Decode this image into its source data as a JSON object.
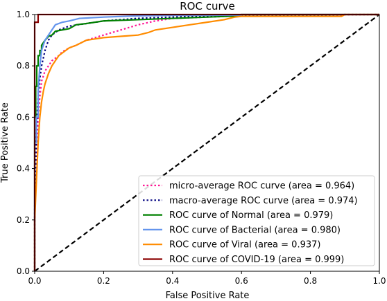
{
  "chart_data": {
    "type": "line",
    "title": "ROC curve",
    "xlabel": "False Positive Rate",
    "ylabel": "True Positive Rate",
    "xlim": [
      0,
      1
    ],
    "ylim": [
      0,
      1
    ],
    "xticks": [
      "0.0",
      "0.2",
      "0.4",
      "0.6",
      "0.8",
      "1.0"
    ],
    "yticks": [
      "0.0",
      "0.2",
      "0.4",
      "0.6",
      "0.8",
      "1.0"
    ],
    "grid": false,
    "legend_position": "lower-right",
    "chance_line": {
      "x": [
        0,
        1
      ],
      "y": [
        0,
        1
      ],
      "color": "#000000",
      "style": "dashed"
    },
    "series": [
      {
        "name": "micro-average ROC curve (area = 0.964)",
        "color": "#ff1493",
        "style": "dotted",
        "x": [
          0.0,
          0.0,
          0.005,
          0.01,
          0.015,
          0.02,
          0.03,
          0.04,
          0.05,
          0.06,
          0.07,
          0.08,
          0.1,
          0.12,
          0.15,
          0.2,
          0.25,
          0.3,
          0.35,
          0.4,
          0.5,
          0.6,
          0.7,
          0.8,
          0.9,
          1.0
        ],
        "y": [
          0.0,
          0.2,
          0.45,
          0.6,
          0.68,
          0.74,
          0.78,
          0.8,
          0.82,
          0.83,
          0.84,
          0.855,
          0.87,
          0.88,
          0.9,
          0.92,
          0.94,
          0.96,
          0.975,
          0.985,
          0.99,
          0.995,
          0.997,
          0.998,
          0.999,
          1.0
        ]
      },
      {
        "name": "macro-average ROC curve (area = 0.974)",
        "color": "#000080",
        "style": "dotted",
        "x": [
          0.0,
          0.0,
          0.005,
          0.01,
          0.015,
          0.02,
          0.03,
          0.04,
          0.05,
          0.07,
          0.1,
          0.15,
          0.2,
          0.3,
          0.4,
          0.5,
          0.6,
          0.8,
          0.9,
          1.0
        ],
        "y": [
          0.0,
          0.25,
          0.55,
          0.68,
          0.75,
          0.8,
          0.86,
          0.9,
          0.92,
          0.94,
          0.955,
          0.965,
          0.975,
          0.985,
          0.99,
          0.995,
          0.997,
          0.998,
          1.0,
          1.0
        ]
      },
      {
        "name": "ROC curve of Normal (area = 0.979)",
        "color": "#008000",
        "style": "solid",
        "x": [
          0.0,
          0.0,
          0.003,
          0.003,
          0.006,
          0.006,
          0.01,
          0.01,
          0.015,
          0.015,
          0.02,
          0.02,
          0.025,
          0.03,
          0.04,
          0.05,
          0.06,
          0.08,
          0.1,
          0.12,
          0.15,
          0.2,
          0.3,
          0.4,
          0.5,
          0.6,
          0.6,
          1.0
        ],
        "y": [
          0.0,
          0.6,
          0.6,
          0.72,
          0.72,
          0.8,
          0.8,
          0.84,
          0.84,
          0.86,
          0.86,
          0.88,
          0.89,
          0.9,
          0.915,
          0.92,
          0.935,
          0.94,
          0.945,
          0.96,
          0.965,
          0.975,
          0.98,
          0.985,
          0.99,
          0.995,
          1.0,
          1.0
        ]
      },
      {
        "name": "ROC curve of Bacterial (area = 0.980)",
        "color": "#6495ed",
        "style": "solid",
        "x": [
          0.0,
          0.0,
          0.005,
          0.005,
          0.01,
          0.01,
          0.015,
          0.02,
          0.025,
          0.03,
          0.04,
          0.05,
          0.06,
          0.08,
          0.1,
          0.13,
          0.2,
          0.3,
          0.4,
          0.6,
          0.6,
          1.0
        ],
        "y": [
          0.0,
          0.5,
          0.5,
          0.6,
          0.6,
          0.7,
          0.8,
          0.86,
          0.88,
          0.9,
          0.92,
          0.94,
          0.96,
          0.97,
          0.975,
          0.985,
          0.99,
          0.995,
          0.997,
          0.998,
          1.0,
          1.0
        ]
      },
      {
        "name": "ROC curve of Viral (area = 0.937)",
        "color": "#ff8c00",
        "style": "solid",
        "x": [
          0.0,
          0.0,
          0.005,
          0.01,
          0.015,
          0.02,
          0.025,
          0.03,
          0.035,
          0.04,
          0.05,
          0.06,
          0.07,
          0.08,
          0.1,
          0.12,
          0.15,
          0.2,
          0.25,
          0.3,
          0.33,
          0.35,
          0.4,
          0.45,
          0.5,
          0.55,
          0.58,
          0.6,
          0.7,
          0.8,
          0.89,
          0.9,
          1.0
        ],
        "y": [
          0.0,
          0.2,
          0.35,
          0.5,
          0.6,
          0.66,
          0.7,
          0.73,
          0.75,
          0.77,
          0.8,
          0.82,
          0.84,
          0.85,
          0.87,
          0.88,
          0.9,
          0.91,
          0.915,
          0.92,
          0.93,
          0.94,
          0.95,
          0.96,
          0.97,
          0.98,
          0.99,
          0.993,
          0.993,
          0.993,
          0.993,
          1.0,
          1.0
        ]
      },
      {
        "name": "ROC curve of COVID-19 (area = 0.999)",
        "color": "#8b0000",
        "style": "solid",
        "x": [
          0.0,
          0.0,
          0.01,
          0.01,
          1.0
        ],
        "y": [
          0.0,
          0.97,
          0.97,
          1.0,
          1.0
        ]
      }
    ]
  }
}
